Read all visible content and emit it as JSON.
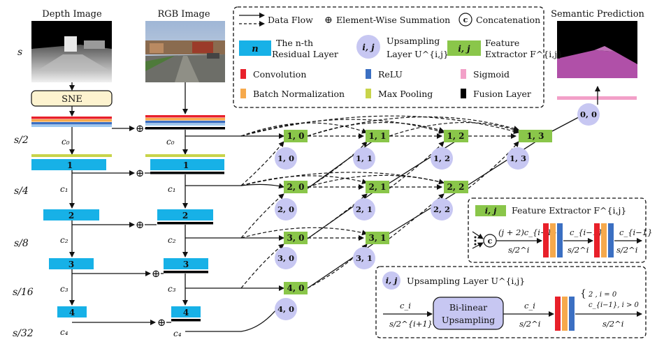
{
  "colors": {
    "residual": "#17b1e7",
    "feature": "#8ac64a",
    "upsampling": "#c7c7f2",
    "convolution": "#e8202a",
    "relu": "#3b6fc2",
    "sigmoid": "#f2a0c8",
    "batch_norm": "#f6a94c",
    "max_pooling": "#c8d44a",
    "fusion": "#000000",
    "sne": "#fdf3cf"
  },
  "top": {
    "depth_title": "Depth Image",
    "rgb_title": "RGB Image",
    "semantic_title": "Semantic Prediction",
    "sne_label": "SNE"
  },
  "scales": [
    "s",
    "s/2",
    "s/4",
    "s/8",
    "s/16",
    "s/32"
  ],
  "depth_c": [
    "c₀",
    "c₁",
    "c₂",
    "c₃",
    "c₄"
  ],
  "rgb_c": [
    "c₀",
    "c₁",
    "c₂",
    "c₃",
    "c₄"
  ],
  "residual_numbers": [
    "1",
    "2",
    "3",
    "4"
  ],
  "legend": {
    "data_flow": "Data Flow",
    "element_sum": "Element-Wise Summation",
    "concatenation": "Concatenation",
    "residual_title": "The n-th",
    "residual_sub": "Residual Layer",
    "residual_badge": "n",
    "upsampling_title": "Upsampling",
    "upsampling_sub": "Layer U^{i,j}",
    "upsampling_badge": "i, j",
    "feature_title": "Feature",
    "feature_sub": "Extractor F^{i,j}",
    "feature_badge": "i, j",
    "convolution": "Convolution",
    "relu": "ReLU",
    "sigmoid": "Sigmoid",
    "batch_norm": "Batch Normalization",
    "max_pooling": "Max Pooling",
    "fusion": "Fusion Layer"
  },
  "nodes": {
    "f10": "1, 0",
    "f11": "1, 1",
    "f12": "1, 2",
    "f13": "1, 3",
    "f20": "2, 0",
    "f21": "2, 1",
    "f22": "2, 2",
    "f30": "3, 0",
    "f31": "3, 1",
    "f40": "4, 0"
  },
  "ups": {
    "u10": "1, 0",
    "u11": "1, 1",
    "u12": "1, 2",
    "u13": "1, 3",
    "u20": "2, 0",
    "u21": "2, 1",
    "u22": "2, 2",
    "u30": "3, 0",
    "u31": "3, 1",
    "u40": "4, 0",
    "u00": "0, 0"
  },
  "fe_detail": {
    "badge": "i, j",
    "title": "Feature Extractor F^{i,j}",
    "in_top": "(j + 2)c_{i−1}",
    "in_bottom": "s/2^i",
    "mid_top": "c_{i−1}",
    "mid_bottom": "s/2^i",
    "out_top": "c_{i−1}",
    "out_bottom": "s/2^i",
    "concat_symbol": "c"
  },
  "up_detail": {
    "badge": "i, j",
    "title": "Upsampling Layer U^{i,j}",
    "in_top": "c_i",
    "in_bottom": "s/2^{i+1}",
    "box_line1": "Bi-linear",
    "box_line2": "Upsampling",
    "mid_top": "c_i",
    "mid_bottom": "s/2^i",
    "case1": "2 , i = 0",
    "case2": "c_{i−1}, i > 0",
    "out_bottom": "s/2^i"
  }
}
